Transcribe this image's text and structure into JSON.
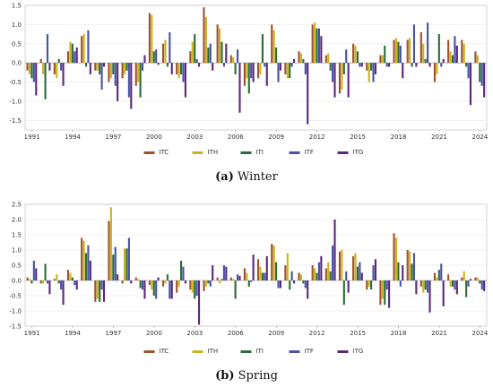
{
  "figure": {
    "panel_a_caption_label": "(a)",
    "panel_a_caption_text": "Winter",
    "panel_b_caption_label": "(b)",
    "panel_b_caption_text": "Spring"
  },
  "chart_data": [
    {
      "type": "bar",
      "title": "Winter",
      "xlabel": "",
      "ylabel": "",
      "ylim": [
        -1.75,
        1.5
      ],
      "yticks": [
        -1.5,
        -1.0,
        -0.5,
        0.0,
        0.5,
        1.0,
        1.5
      ],
      "ytick_labels": [
        "-1.5",
        "-1.0",
        "-0.5",
        "0.0",
        "0.5",
        "1.0",
        "1.5"
      ],
      "xtick_labels": [
        "1991",
        "1994",
        "1997",
        "2000",
        "2003",
        "2006",
        "2009",
        "2012",
        "2015",
        "2018",
        "2021",
        "2024"
      ],
      "categories": [
        "1991",
        "1992",
        "1993",
        "1994",
        "1995",
        "1996",
        "1997",
        "1998",
        "1999",
        "2000",
        "2001",
        "2002",
        "2003",
        "2004",
        "2005",
        "2006",
        "2007",
        "2008",
        "2009",
        "2010",
        "2011",
        "2012",
        "2013",
        "2014",
        "2015",
        "2016",
        "2017",
        "2018",
        "2019",
        "2020",
        "2021",
        "2022",
        "2023",
        "2024"
      ],
      "grid": true,
      "legend_position": "bottom",
      "series": [
        {
          "name": "ITC",
          "color": "#a0522d",
          "values": [
            -0.2,
            0.1,
            -0.3,
            0.3,
            0.7,
            -0.2,
            -0.5,
            -0.4,
            -0.6,
            1.3,
            0.5,
            -0.3,
            0.3,
            1.45,
            1.0,
            0.2,
            -0.6,
            -0.4,
            1.0,
            -0.3,
            0.3,
            1.0,
            0.2,
            -0.8,
            0.5,
            -0.2,
            0.2,
            0.6,
            0.6,
            0.8,
            -0.5,
            0.6,
            0.6,
            0.3
          ]
        },
        {
          "name": "ITH",
          "color": "#c9b51f",
          "values": [
            -0.3,
            -0.3,
            -0.4,
            0.55,
            0.75,
            -0.2,
            -0.4,
            -0.3,
            -0.5,
            1.25,
            0.6,
            -0.4,
            0.55,
            1.2,
            0.9,
            0.15,
            -0.4,
            -0.3,
            0.85,
            -0.4,
            0.25,
            1.05,
            0.25,
            -0.7,
            0.45,
            -0.5,
            0.2,
            0.65,
            0.65,
            0.5,
            -0.3,
            0.3,
            0.5,
            0.2
          ]
        },
        {
          "name": "ITI",
          "color": "#2e6b3a",
          "values": [
            -0.4,
            -0.95,
            0.1,
            0.5,
            -0.1,
            -0.3,
            -0.3,
            -0.2,
            -0.9,
            0.3,
            -0.1,
            -0.3,
            0.75,
            0.4,
            0.55,
            -0.3,
            -0.8,
            0.75,
            0.4,
            -0.4,
            0.1,
            0.9,
            -0.2,
            -0.3,
            0.3,
            -0.2,
            0.45,
            0.55,
            -0.1,
            0.1,
            0.75,
            0.2,
            -0.1,
            -0.5
          ]
        },
        {
          "name": "ITF",
          "color": "#4852a8",
          "values": [
            -0.5,
            0.75,
            -0.2,
            0.3,
            0.85,
            -0.7,
            -0.6,
            -0.9,
            -0.2,
            0.35,
            0.8,
            -0.5,
            0.1,
            0.5,
            -0.1,
            0.35,
            -0.4,
            -0.1,
            -0.5,
            -0.1,
            -0.3,
            0.9,
            -0.5,
            0.35,
            -0.1,
            -0.5,
            -0.1,
            0.45,
            1.0,
            1.05,
            -0.1,
            0.7,
            -0.4,
            -0.6
          ]
        },
        {
          "name": "ITG",
          "color": "#5a2a7a",
          "values": [
            -0.85,
            -0.2,
            -0.6,
            0.4,
            -0.3,
            -0.1,
            -1.0,
            -1.2,
            0.2,
            -0.05,
            -0.3,
            -0.9,
            -0.1,
            -0.2,
            0.5,
            -1.3,
            -0.5,
            -0.6,
            -0.2,
            0.1,
            -1.6,
            0.7,
            -0.9,
            -0.9,
            -0.1,
            -0.3,
            -0.1,
            -0.4,
            -0.1,
            -0.1,
            0.1,
            0.45,
            -1.1,
            -0.9
          ]
        }
      ]
    },
    {
      "type": "bar",
      "title": "Spring",
      "xlabel": "",
      "ylabel": "",
      "ylim": [
        -1.5,
        2.5
      ],
      "yticks": [
        -1.5,
        -1.0,
        -0.5,
        0.0,
        0.5,
        1.0,
        1.5,
        2.0,
        2.5
      ],
      "ytick_labels": [
        "-1.5",
        "-1.0",
        "-0.5",
        "0.0",
        "0.5",
        "1.0",
        "1.5",
        "2.0",
        "2.5"
      ],
      "xtick_labels": [
        "1991",
        "1994",
        "1997",
        "2000",
        "2003",
        "2006",
        "2009",
        "2012",
        "2015",
        "2018",
        "2021",
        "2024"
      ],
      "categories": [
        "1991",
        "1992",
        "1993",
        "1994",
        "1995",
        "1996",
        "1997",
        "1998",
        "1999",
        "2000",
        "2001",
        "2002",
        "2003",
        "2004",
        "2005",
        "2006",
        "2007",
        "2008",
        "2009",
        "2010",
        "2011",
        "2012",
        "2013",
        "2014",
        "2015",
        "2016",
        "2017",
        "2018",
        "2019",
        "2020",
        "2021",
        "2022",
        "2023",
        "2024"
      ],
      "grid": true,
      "legend_position": "bottom",
      "series": [
        {
          "name": "ITC",
          "color": "#a0522d",
          "values": [
            0.1,
            -0.1,
            0.05,
            0.35,
            1.4,
            -0.7,
            1.95,
            -0.1,
            0.1,
            -0.15,
            -0.2,
            -0.4,
            -0.3,
            -0.35,
            0.1,
            0.1,
            0.4,
            0.7,
            1.2,
            0.5,
            0.25,
            0.5,
            0.4,
            0.95,
            0.8,
            -0.3,
            -0.8,
            1.55,
            1.0,
            -0.2,
            0.25,
            0.2,
            0.1,
            0.1
          ]
        },
        {
          "name": "ITH",
          "color": "#c9b51f",
          "values": [
            0.05,
            -0.1,
            0.2,
            0.25,
            1.3,
            -0.6,
            2.4,
            1.05,
            0.05,
            -0.3,
            -0.1,
            -0.2,
            -0.4,
            -0.2,
            -0.1,
            0.05,
            0.25,
            0.45,
            1.15,
            0.9,
            0.2,
            0.4,
            0.6,
            1.0,
            0.9,
            -0.2,
            -0.6,
            1.4,
            0.95,
            -0.4,
            0.1,
            -0.2,
            0.3,
            0.1
          ]
        },
        {
          "name": "ITI",
          "color": "#2e6b3a",
          "values": [
            -0.1,
            0.55,
            -0.1,
            0.1,
            0.9,
            -0.7,
            0.85,
            1.05,
            -0.25,
            -0.5,
            0.2,
            0.65,
            -0.6,
            -0.1,
            0.05,
            -0.6,
            -0.2,
            0.25,
            0.6,
            -0.3,
            -0.1,
            0.25,
            0.3,
            -0.8,
            0.45,
            -0.3,
            -0.8,
            0.6,
            0.55,
            -0.3,
            0.35,
            -0.2,
            -0.55,
            -0.1
          ]
        },
        {
          "name": "ITF",
          "color": "#4852a8",
          "values": [
            0.65,
            -0.1,
            -0.3,
            -0.15,
            1.15,
            -0.3,
            1.1,
            1.4,
            -0.3,
            -0.6,
            -0.6,
            0.45,
            -0.5,
            -0.2,
            0.5,
            0.2,
            -0.05,
            0.25,
            -0.25,
            0.3,
            -0.25,
            0.6,
            1.15,
            0.3,
            0.6,
            0.5,
            -0.3,
            -0.2,
            0.9,
            -0.4,
            0.55,
            -0.3,
            -0.2,
            -0.3
          ]
        },
        {
          "name": "ITG",
          "color": "#5a2a7a",
          "values": [
            0.4,
            -0.45,
            -0.8,
            -0.3,
            0.65,
            -0.7,
            0.2,
            -0.1,
            -0.6,
            0.1,
            -0.6,
            -0.1,
            -1.45,
            0.5,
            0.45,
            0.15,
            0.85,
            0.8,
            -0.25,
            -0.1,
            -0.6,
            0.8,
            2.0,
            -0.4,
            0.25,
            0.7,
            -0.9,
            0.5,
            -0.45,
            -1.05,
            -0.85,
            -0.45,
            0.05,
            -0.35
          ]
        }
      ]
    }
  ]
}
